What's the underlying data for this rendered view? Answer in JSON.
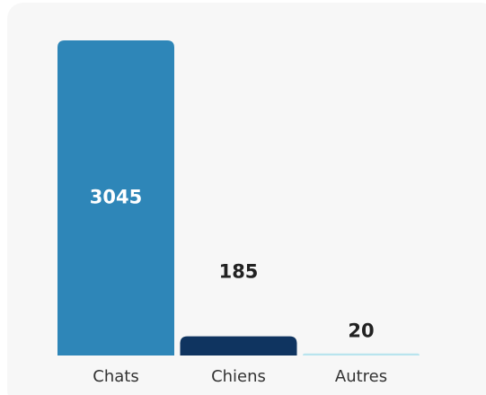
{
  "chart_data": {
    "type": "bar",
    "categories": [
      "Chats",
      "Chiens",
      "Autres"
    ],
    "values": [
      3045,
      185,
      20
    ],
    "colors": [
      "#2e86b8",
      "#0f3460",
      "#b9e4ee"
    ],
    "ylim": [
      0,
      3045
    ]
  }
}
